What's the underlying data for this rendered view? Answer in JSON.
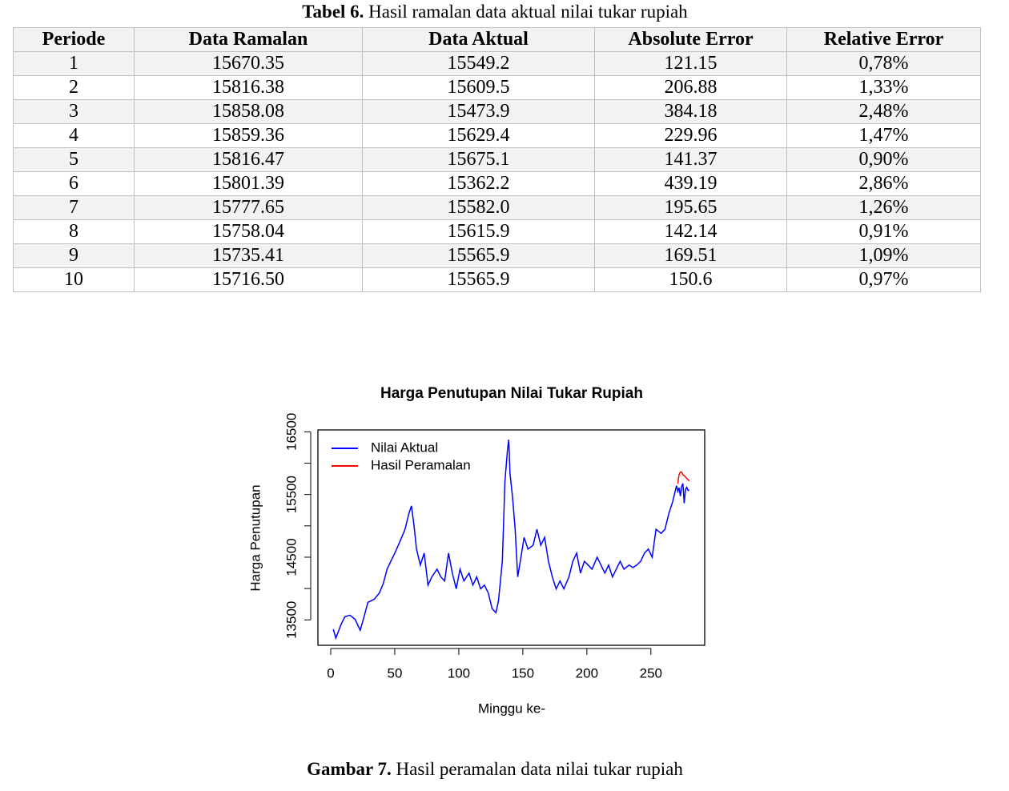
{
  "table": {
    "caption_label": "Tabel 6.",
    "caption_text": "Hasil ramalan data aktual nilai tukar rupiah",
    "header": [
      "Periode",
      "Data Ramalan",
      "Data Aktual",
      "Absolute Error",
      "Relative Error"
    ],
    "rows": [
      [
        "1",
        "15670.35",
        "15549.2",
        "121.15",
        "0,78%"
      ],
      [
        "2",
        "15816.38",
        "15609.5",
        "206.88",
        "1,33%"
      ],
      [
        "3",
        "15858.08",
        "15473.9",
        "384.18",
        "2,48%"
      ],
      [
        "4",
        "15859.36",
        "15629.4",
        "229.96",
        "1,47%"
      ],
      [
        "5",
        "15816.47",
        "15675.1",
        "141.37",
        "0,90%"
      ],
      [
        "6",
        "15801.39",
        "15362.2",
        "439.19",
        "2,86%"
      ],
      [
        "7",
        "15777.65",
        "15582.0",
        "195.65",
        "1,26%"
      ],
      [
        "8",
        "15758.04",
        "15615.9",
        "142.14",
        "0,91%"
      ],
      [
        "9",
        "15735.41",
        "15565.9",
        "169.51",
        "1,09%"
      ],
      [
        "10",
        "15716.50",
        "15565.9",
        "150.6",
        "0,97%"
      ]
    ]
  },
  "chart_data": {
    "type": "line",
    "title": "Harga Penutupan Nilai Tukar Rupiah",
    "x_label": "Minggu ke-",
    "y_label": "Harga Penutupan",
    "xlim": [
      -10,
      292
    ],
    "ylim": [
      13095,
      16530
    ],
    "xticks": [
      0,
      50,
      100,
      150,
      200,
      250
    ],
    "yticks": [
      13500,
      14500,
      15500,
      16500
    ],
    "yticks_minor": [
      14000,
      15000,
      16000
    ],
    "legend": "top-left",
    "series": [
      {
        "name": "Nilai Aktual",
        "color": "#0000ff",
        "x": [
          2,
          4,
          8,
          11,
          15,
          19,
          23,
          26,
          29,
          34,
          38,
          41,
          44,
          47,
          50,
          54,
          58,
          61,
          63,
          65,
          67,
          70,
          73,
          76,
          79,
          83,
          86,
          89,
          92,
          95,
          98,
          101,
          104,
          108,
          111,
          114,
          117,
          120,
          123,
          126,
          129,
          131,
          134,
          136,
          138,
          139,
          140,
          142,
          144,
          146,
          148,
          151,
          154,
          158,
          161,
          164,
          167,
          170,
          173,
          176,
          179,
          182,
          186,
          189,
          192,
          195,
          198,
          201,
          204,
          208,
          211,
          214,
          217,
          220,
          223,
          226,
          229,
          233,
          236,
          239,
          242,
          245,
          248,
          251,
          254,
          258,
          261,
          264,
          267,
          270,
          271,
          272,
          273,
          274,
          275,
          276,
          277,
          278,
          279,
          280
        ],
        "values": [
          13350,
          13210,
          13425,
          13550,
          13575,
          13510,
          13335,
          13550,
          13780,
          13830,
          13930,
          14080,
          14310,
          14440,
          14565,
          14750,
          14945,
          15195,
          15320,
          15005,
          14630,
          14375,
          14565,
          14055,
          14185,
          14310,
          14185,
          14120,
          14565,
          14245,
          13995,
          14310,
          14120,
          14245,
          14055,
          14185,
          13995,
          14055,
          13930,
          13680,
          13615,
          13805,
          14435,
          15700,
          16210,
          16375,
          15830,
          15450,
          14945,
          14185,
          14435,
          14815,
          14630,
          14690,
          14945,
          14690,
          14815,
          14435,
          14185,
          13995,
          14120,
          13995,
          14185,
          14435,
          14565,
          14245,
          14435,
          14375,
          14310,
          14500,
          14375,
          14245,
          14375,
          14185,
          14310,
          14435,
          14310,
          14375,
          14335,
          14375,
          14435,
          14565,
          14630,
          14500,
          14945,
          14880,
          14945,
          15195,
          15385,
          15640,
          15549.2,
          15609.5,
          15473.9,
          15629.4,
          15675.1,
          15362.2,
          15582.0,
          15615.9,
          15565.9,
          15565.9
        ]
      },
      {
        "name": "Hasil Peramalan",
        "color": "#ff0000",
        "x": [
          271,
          272,
          273,
          274,
          275,
          276,
          277,
          278,
          279,
          280
        ],
        "values": [
          15670.35,
          15816.38,
          15858.08,
          15859.36,
          15816.47,
          15801.39,
          15777.65,
          15758.04,
          15735.41,
          15716.5
        ]
      }
    ]
  },
  "figure": {
    "caption_label": "Gambar 7.",
    "caption_text": "Hasil peramalan data nilai tukar rupiah"
  }
}
